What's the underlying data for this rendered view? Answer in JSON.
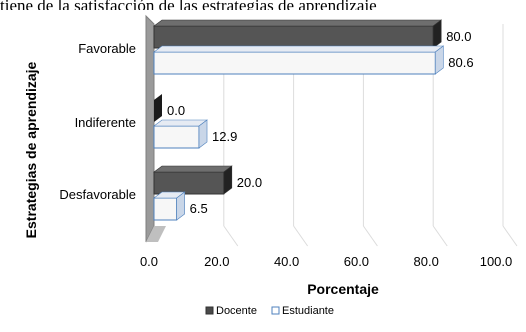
{
  "caption_fragment": "tiene de la satisfacción de las estrategias de aprendizaje",
  "chart_data": {
    "type": "bar",
    "orientation": "horizontal",
    "style": "3d",
    "categories": [
      "Favorable",
      "Indiferente",
      "Desfavorable"
    ],
    "series": [
      {
        "name": "Docente",
        "values": [
          80.0,
          0.0,
          20.0
        ],
        "labels": [
          "80.0",
          "0.0",
          "20.0"
        ],
        "color": "#4a4a4a"
      },
      {
        "name": "Estudiante",
        "values": [
          80.6,
          12.9,
          6.5
        ],
        "labels": [
          "80.6",
          "12.9",
          "6.5"
        ],
        "color": "#ffffff",
        "edge": "#4f81bd"
      }
    ],
    "xlabel": "Porcentaje",
    "ylabel": "Estrategias de aprendizaje",
    "xlim": [
      0,
      100
    ],
    "xticks": [
      "0.0",
      "20.0",
      "40.0",
      "60.0",
      "80.0",
      "100.0"
    ],
    "grid": true,
    "legend_position": "bottom"
  }
}
